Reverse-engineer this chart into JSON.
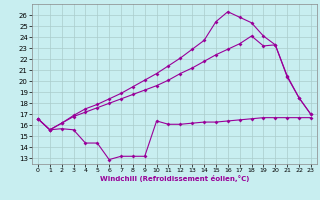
{
  "xlabel": "Windchill (Refroidissement éolien,°C)",
  "bg_color": "#c8eef0",
  "line_color": "#990099",
  "grid_color": "#aacccc",
  "ylim": [
    12.5,
    27.0
  ],
  "xlim": [
    -0.5,
    23.5
  ],
  "yticks": [
    13,
    14,
    15,
    16,
    17,
    18,
    19,
    20,
    21,
    22,
    23,
    24,
    25,
    26
  ],
  "xticks": [
    0,
    1,
    2,
    3,
    4,
    5,
    6,
    7,
    8,
    9,
    10,
    11,
    12,
    13,
    14,
    15,
    16,
    17,
    18,
    19,
    20,
    21,
    22,
    23
  ],
  "series1_x": [
    0,
    1,
    2,
    3,
    4,
    5,
    6,
    7,
    8,
    9,
    10,
    11,
    12,
    13,
    14,
    15,
    16,
    17,
    18,
    19,
    20,
    21,
    22,
    23
  ],
  "series1_y": [
    16.6,
    15.6,
    15.7,
    15.6,
    14.4,
    14.4,
    12.9,
    13.2,
    13.2,
    13.2,
    16.4,
    16.1,
    16.1,
    16.2,
    16.3,
    16.3,
    16.4,
    16.5,
    16.6,
    16.7,
    16.7,
    16.7,
    16.7,
    16.7
  ],
  "series2_x": [
    0,
    1,
    2,
    3,
    4,
    5,
    6,
    7,
    8,
    9,
    10,
    11,
    12,
    13,
    14,
    15,
    16,
    17,
    18,
    19,
    20,
    21,
    22,
    23
  ],
  "series2_y": [
    16.6,
    15.6,
    16.2,
    16.8,
    17.2,
    17.6,
    18.0,
    18.4,
    18.8,
    19.2,
    19.6,
    20.1,
    20.7,
    21.2,
    21.8,
    22.4,
    22.9,
    23.4,
    24.1,
    23.2,
    23.3,
    20.4,
    18.5,
    17.0
  ],
  "series3_x": [
    0,
    1,
    2,
    3,
    4,
    5,
    6,
    7,
    8,
    9,
    10,
    11,
    12,
    13,
    14,
    15,
    16,
    17,
    18,
    19,
    20,
    21,
    22,
    23
  ],
  "series3_y": [
    16.6,
    15.6,
    16.2,
    16.9,
    17.5,
    17.9,
    18.4,
    18.9,
    19.5,
    20.1,
    20.7,
    21.4,
    22.1,
    22.9,
    23.7,
    25.4,
    26.3,
    25.8,
    25.3,
    24.1,
    23.3,
    20.5,
    18.5,
    17.0
  ]
}
